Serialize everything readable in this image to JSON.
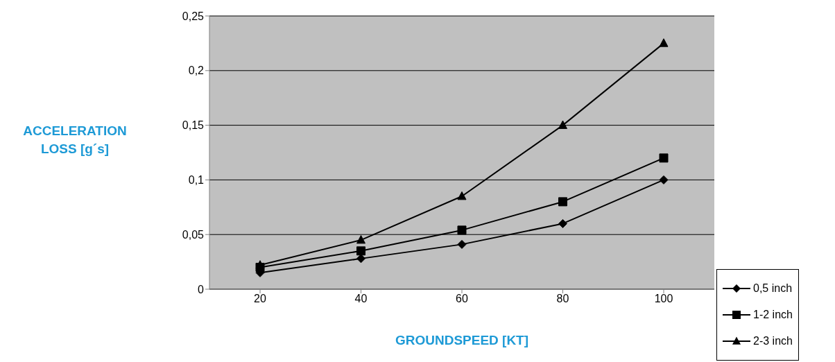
{
  "chart_data": {
    "type": "line",
    "xlabel": "GROUNDSPEED [KT]",
    "ylabel": "ACCELERATION LOSS [g´s]",
    "categories": [
      "20",
      "40",
      "60",
      "80",
      "100"
    ],
    "series": [
      {
        "name": "0,5 inch",
        "color": "#000000",
        "marker": "diamond",
        "values": [
          0.015,
          0.028,
          0.041,
          0.06,
          0.1
        ]
      },
      {
        "name": "1-2 inch",
        "color": "#000000",
        "marker": "square",
        "values": [
          0.02,
          0.035,
          0.054,
          0.08,
          0.12
        ]
      },
      {
        "name": "2-3 inch",
        "color": "#000000",
        "marker": "triangle",
        "values": [
          0.022,
          0.045,
          0.085,
          0.15,
          0.225
        ]
      }
    ],
    "ylim": [
      0,
      0.25
    ],
    "yticks": [
      {
        "value": 0,
        "label": "0"
      },
      {
        "value": 0.05,
        "label": "0,05"
      },
      {
        "value": 0.1,
        "label": "0,1"
      },
      {
        "value": 0.15,
        "label": "0,15"
      },
      {
        "value": 0.2,
        "label": "0,2"
      },
      {
        "value": 0.25,
        "label": "0,25"
      }
    ],
    "grid": "y",
    "legend": "bottom right",
    "line_style": "solid"
  }
}
